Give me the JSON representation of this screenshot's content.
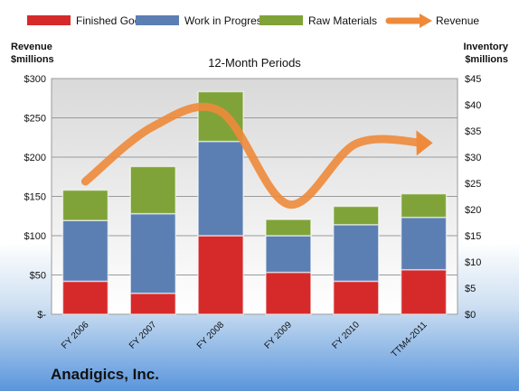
{
  "company": "Anadigics, Inc.",
  "chart_data": {
    "type": "bar",
    "stacked": true,
    "title": "12-Month Periods",
    "ylabel_left": "Revenue\n$millions",
    "ylabel_right": "Inventory\n$millions",
    "categories": [
      "FY 2006",
      "FY 2007",
      "FY 2008",
      "FY 2009",
      "FY 2010",
      "TTM4-2011"
    ],
    "left_ylim": [
      0,
      300
    ],
    "left_ticks": [
      0,
      50,
      100,
      150,
      200,
      250,
      300
    ],
    "left_tick_labels": [
      "$-",
      "$50",
      "$100",
      "$150",
      "$200",
      "$250",
      "$300"
    ],
    "right_ylim": [
      0,
      45
    ],
    "right_ticks": [
      0,
      5,
      10,
      15,
      20,
      25,
      30,
      35,
      40,
      45
    ],
    "right_tick_labels": [
      "$0",
      "$5",
      "$10",
      "$15",
      "$20",
      "$25",
      "$30",
      "$35",
      "$40",
      "$45"
    ],
    "grid": true,
    "legend_position": "top",
    "series": [
      {
        "name": "Finished Goods",
        "axis": "right",
        "color": "#d62a2a",
        "values": [
          6.3,
          4.0,
          15.0,
          8.0,
          6.3,
          8.5
        ]
      },
      {
        "name": "Work in Progress",
        "axis": "right",
        "color": "#5b7fb3",
        "values": [
          11.6,
          15.2,
          18.0,
          7.0,
          10.8,
          10.0
        ]
      },
      {
        "name": "Raw Materials",
        "axis": "right",
        "color": "#7fa338",
        "values": [
          5.8,
          9.0,
          9.5,
          3.1,
          3.5,
          4.5
        ]
      }
    ],
    "line_series": {
      "name": "Revenue",
      "axis": "left",
      "color": "#ee8a3a",
      "values": [
        169,
        239,
        258,
        140,
        217,
        218
      ]
    }
  }
}
